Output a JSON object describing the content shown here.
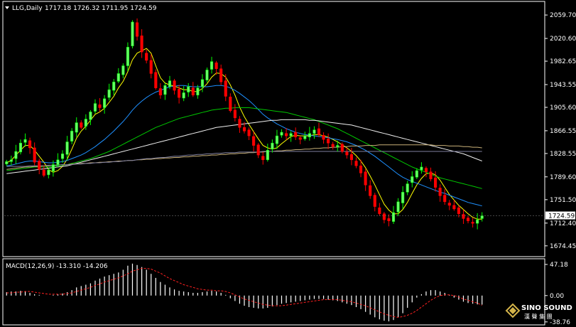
{
  "header": {
    "symbol": "LLG,Daily",
    "ohlc": "1717.18 1726.32 1711.95 1724.59"
  },
  "indicator_label": "MACD(12,26,9) -13.310 -14.206",
  "watermark": {
    "brand": "SINO SOUND",
    "tagline": "漢 聲 集 團"
  },
  "colors": {
    "background": "#000000",
    "frame": "#ffffff",
    "bull": "#00ff00",
    "bull_body": "#66ff66",
    "bear": "#ff0000",
    "ma5": "#ffff00",
    "ma20": "#1e90ff",
    "ma60": "#00c800",
    "ma120": "#f0f0f0",
    "ma250": "#c8b078",
    "ma_flat": "#8080a0",
    "macd_hist": "#ffffff",
    "macd_signal": "#ff2020",
    "price_tag": "#ffffff"
  },
  "chart_data": [
    {
      "type": "candlestick",
      "name": "price",
      "ylim": [
        1660,
        2080
      ],
      "yticks": [
        2059.7,
        2020.6,
        1982.65,
        1943.55,
        1905.6,
        1866.55,
        1828.55,
        1789.6,
        1751.5,
        1712.4,
        1674.45
      ],
      "ytick_labels": [
        "2059.70",
        "2020.60",
        "1982.65",
        "1943.55",
        "1905.60",
        "1866.55",
        "1828.55",
        "1789.60",
        "1751.50",
        "1712.40",
        "1674.45"
      ],
      "last_price_label": "1724.59",
      "closes": [
        1815,
        1818,
        1832,
        1846,
        1852,
        1838,
        1814,
        1802,
        1792,
        1801,
        1810,
        1818,
        1828,
        1848,
        1866,
        1880,
        1872,
        1886,
        1898,
        1912,
        1905,
        1920,
        1935,
        1948,
        1962,
        1975,
        2006,
        2048,
        2024,
        1998,
        1984,
        1962,
        1938,
        1926,
        1942,
        1950,
        1934,
        1922,
        1930,
        1940,
        1926,
        1938,
        1952,
        1968,
        1982,
        1970,
        1948,
        1924,
        1900,
        1888,
        1872,
        1866,
        1858,
        1842,
        1826,
        1818,
        1834,
        1846,
        1858,
        1864,
        1858,
        1862,
        1856,
        1852,
        1858,
        1862,
        1868,
        1860,
        1852,
        1846,
        1840,
        1842,
        1832,
        1826,
        1818,
        1808,
        1796,
        1776,
        1758,
        1740,
        1728,
        1718,
        1716,
        1730,
        1748,
        1764,
        1778,
        1790,
        1800,
        1806,
        1798,
        1786,
        1772,
        1758,
        1748,
        1742,
        1736,
        1728,
        1720,
        1716,
        1712,
        1718,
        1724.59
      ],
      "ma_series": [
        {
          "period": 5,
          "color_key": "ma5",
          "values": [
            1813,
            1817,
            1826,
            1834,
            1842,
            1842,
            1834,
            1824,
            1814,
            1802,
            1797,
            1800,
            1807,
            1819,
            1836,
            1854,
            1866,
            1874,
            1884,
            1894,
            1898,
            1904,
            1914,
            1924,
            1938,
            1949,
            1965,
            1985,
            1996,
            2000,
            2004,
            1996,
            1975,
            1955,
            1946,
            1943,
            1941,
            1938,
            1935,
            1935,
            1932,
            1932,
            1937,
            1945,
            1956,
            1963,
            1962,
            1956,
            1943,
            1926,
            1906,
            1890,
            1877,
            1865,
            1853,
            1842,
            1838,
            1836,
            1838,
            1845,
            1851,
            1857,
            1859,
            1858,
            1858,
            1858,
            1860,
            1860,
            1858,
            1856,
            1852,
            1848,
            1843,
            1838,
            1832,
            1825,
            1816,
            1805,
            1791,
            1776,
            1760,
            1744,
            1734,
            1728,
            1728,
            1735,
            1747,
            1762,
            1776,
            1787,
            1795,
            1796,
            1793,
            1784,
            1772,
            1760,
            1751,
            1742,
            1735,
            1728,
            1722,
            1719,
            1719
          ]
        },
        {
          "period": 20,
          "color_key": "ma20",
          "values": [
            1808,
            1809,
            1811,
            1813,
            1815,
            1816,
            1816,
            1815,
            1814,
            1813,
            1813,
            1814,
            1815,
            1817,
            1820,
            1823,
            1826,
            1830,
            1835,
            1840,
            1846,
            1852,
            1859,
            1866,
            1874,
            1882,
            1891,
            1901,
            1909,
            1916,
            1922,
            1927,
            1931,
            1934,
            1937,
            1940,
            1941,
            1942,
            1942,
            1941,
            1940,
            1940,
            1940,
            1940,
            1941,
            1942,
            1942,
            1941,
            1938,
            1934,
            1929,
            1923,
            1917,
            1910,
            1902,
            1894,
            1888,
            1883,
            1878,
            1874,
            1870,
            1867,
            1864,
            1862,
            1860,
            1859,
            1858,
            1857,
            1856,
            1855,
            1853,
            1852,
            1850,
            1848,
            1845,
            1842,
            1838,
            1834,
            1829,
            1824,
            1818,
            1812,
            1806,
            1800,
            1794,
            1789,
            1785,
            1782,
            1779,
            1776,
            1773,
            1770,
            1767,
            1764,
            1762,
            1759,
            1756,
            1753,
            1750,
            1747,
            1745,
            1743,
            1741
          ]
        },
        {
          "period": 60,
          "color_key": "ma60",
          "values": [
            1800,
            1801,
            1802,
            1803,
            1804,
            1805,
            1806,
            1806,
            1806,
            1806,
            1807,
            1808,
            1809,
            1810,
            1812,
            1814,
            1816,
            1818,
            1820,
            1823,
            1826,
            1829,
            1832,
            1836,
            1840,
            1844,
            1848,
            1852,
            1856,
            1860,
            1864,
            1868,
            1872,
            1875,
            1878,
            1881,
            1884,
            1887,
            1889,
            1891,
            1893,
            1895,
            1897,
            1899,
            1901,
            1902,
            1903,
            1904,
            1904,
            1905,
            1905,
            1905,
            1905,
            1904,
            1903,
            1902,
            1901,
            1900,
            1899,
            1898,
            1897,
            1895,
            1893,
            1891,
            1889,
            1887,
            1885,
            1882,
            1879,
            1876,
            1873,
            1870,
            1866,
            1862,
            1858,
            1854,
            1850,
            1846,
            1842,
            1838,
            1834,
            1830,
            1826,
            1822,
            1818,
            1814,
            1810,
            1806,
            1803,
            1800,
            1797,
            1794,
            1791,
            1788,
            1786,
            1784,
            1782,
            1780,
            1778,
            1776,
            1774,
            1772,
            1770
          ]
        },
        {
          "period": 120,
          "color_key": "ma120",
          "values": [
            1795,
            1796,
            1797,
            1798,
            1799,
            1800,
            1801,
            1802,
            1803,
            1804,
            1805,
            1806,
            1807,
            1808,
            1810,
            1812,
            1814,
            1816,
            1818,
            1820,
            1822,
            1824,
            1826,
            1828,
            1830,
            1832,
            1834,
            1836,
            1838,
            1840,
            1842,
            1844,
            1846,
            1848,
            1850,
            1852,
            1854,
            1856,
            1858,
            1860,
            1862,
            1864,
            1866,
            1868,
            1870,
            1872,
            1873,
            1874,
            1875,
            1876,
            1877,
            1878,
            1879,
            1880,
            1881,
            1882,
            1883,
            1884,
            1884,
            1885,
            1885,
            1885,
            1885,
            1885,
            1885,
            1884,
            1884,
            1883,
            1882,
            1881,
            1880,
            1879,
            1878,
            1877,
            1876,
            1874,
            1872,
            1870,
            1868,
            1866,
            1864,
            1862,
            1860,
            1858,
            1856,
            1854,
            1852,
            1850,
            1848,
            1846,
            1844,
            1842,
            1840,
            1838,
            1836,
            1834,
            1832,
            1830,
            1828,
            1825,
            1822,
            1819,
            1816
          ]
        },
        {
          "period": 250,
          "color_key": "ma250",
          "values": [
            1802,
            1803,
            1804,
            1805,
            1806,
            1806,
            1807,
            1807,
            1808,
            1808,
            1809,
            1809,
            1810,
            1810,
            1811,
            1811,
            1812,
            1812,
            1813,
            1813,
            1814,
            1814,
            1815,
            1815,
            1816,
            1816,
            1817,
            1817,
            1818,
            1818,
            1819,
            1819,
            1820,
            1820,
            1821,
            1821,
            1822,
            1822,
            1823,
            1823,
            1824,
            1824,
            1825,
            1825,
            1826,
            1826,
            1827,
            1827,
            1828,
            1828,
            1829,
            1829,
            1830,
            1830,
            1831,
            1831,
            1832,
            1832,
            1833,
            1833,
            1834,
            1834,
            1835,
            1835,
            1836,
            1836,
            1837,
            1837,
            1838,
            1838,
            1839,
            1839,
            1840,
            1840,
            1841,
            1841,
            1841,
            1842,
            1842,
            1842,
            1843,
            1843,
            1843,
            1843,
            1843,
            1843,
            1843,
            1843,
            1843,
            1843,
            1843,
            1843,
            1842,
            1842,
            1842,
            1841,
            1841,
            1841,
            1840,
            1840,
            1839,
            1839,
            1838
          ]
        },
        {
          "period": 200,
          "color_key": "ma_flat",
          "values": [
            1807,
            1807,
            1807,
            1807,
            1807,
            1808,
            1808,
            1808,
            1808,
            1809,
            1809,
            1809,
            1810,
            1810,
            1810,
            1811,
            1811,
            1812,
            1812,
            1813,
            1813,
            1814,
            1814,
            1815,
            1815,
            1816,
            1817,
            1817,
            1818,
            1819,
            1820,
            1820,
            1821,
            1822,
            1822,
            1823,
            1824,
            1824,
            1825,
            1826,
            1826,
            1827,
            1827,
            1828,
            1828,
            1829,
            1829,
            1830,
            1830,
            1830,
            1831,
            1831,
            1831,
            1831,
            1831,
            1832,
            1832,
            1832,
            1832,
            1832,
            1832,
            1832,
            1832,
            1832,
            1832,
            1832,
            1832,
            1832,
            1832,
            1832,
            1832,
            1832,
            1832,
            1832,
            1832,
            1832,
            1832,
            1832,
            1832,
            1832,
            1832,
            1832,
            1832,
            1832,
            1832,
            1832,
            1832,
            1832,
            1832,
            1832,
            1832,
            1832,
            1832,
            1832,
            1832,
            1832,
            1832,
            1832,
            1832,
            1832,
            1832,
            1832,
            1832
          ]
        }
      ]
    },
    {
      "type": "histogram",
      "name": "MACD(12,26,9)",
      "ylim": [
        -40,
        50
      ],
      "yticks": [
        47.18,
        0.0,
        -38.76
      ],
      "ytick_labels": [
        "47.18",
        "0.00",
        "-38.76"
      ],
      "macd": [
        5,
        6,
        6,
        7,
        6,
        4,
        2,
        1,
        0,
        0,
        1,
        2,
        3,
        5,
        8,
        12,
        14,
        16,
        18,
        22,
        25,
        28,
        30,
        32,
        34,
        38,
        44,
        47,
        45,
        42,
        38,
        32,
        26,
        20,
        16,
        12,
        9,
        7,
        6,
        5,
        4,
        4,
        5,
        6,
        7,
        6,
        4,
        1,
        -4,
        -8,
        -12,
        -15,
        -17,
        -18,
        -19,
        -19,
        -18,
        -16,
        -14,
        -12,
        -11,
        -10,
        -9,
        -8,
        -7,
        -6,
        -5,
        -5,
        -5,
        -6,
        -7,
        -8,
        -10,
        -12,
        -14,
        -17,
        -20,
        -24,
        -28,
        -32,
        -35,
        -37,
        -38,
        -36,
        -32,
        -26,
        -18,
        -10,
        -3,
        2,
        6,
        8,
        8,
        6,
        4,
        1,
        -3,
        -6,
        -9,
        -11,
        -12,
        -13,
        -13.31
      ],
      "signal": [
        4,
        4,
        5,
        5,
        6,
        6,
        5,
        4,
        3,
        2,
        2,
        2,
        2,
        3,
        4,
        6,
        8,
        10,
        12,
        15,
        17,
        20,
        22,
        24,
        26,
        29,
        32,
        36,
        38,
        40,
        40,
        39,
        36,
        33,
        29,
        25,
        22,
        19,
        16,
        14,
        12,
        10,
        9,
        8,
        8,
        7,
        7,
        6,
        4,
        1,
        -2,
        -5,
        -7,
        -9,
        -11,
        -13,
        -14,
        -15,
        -15,
        -15,
        -14,
        -13,
        -12,
        -11,
        -10,
        -9,
        -8,
        -7,
        -6,
        -6,
        -6,
        -6,
        -7,
        -8,
        -9,
        -11,
        -13,
        -15,
        -18,
        -21,
        -24,
        -27,
        -29,
        -31,
        -32,
        -31,
        -29,
        -26,
        -22,
        -17,
        -12,
        -7,
        -3,
        0,
        1,
        1,
        0,
        -2,
        -5,
        -7,
        -9,
        -11,
        -14.206
      ]
    }
  ]
}
